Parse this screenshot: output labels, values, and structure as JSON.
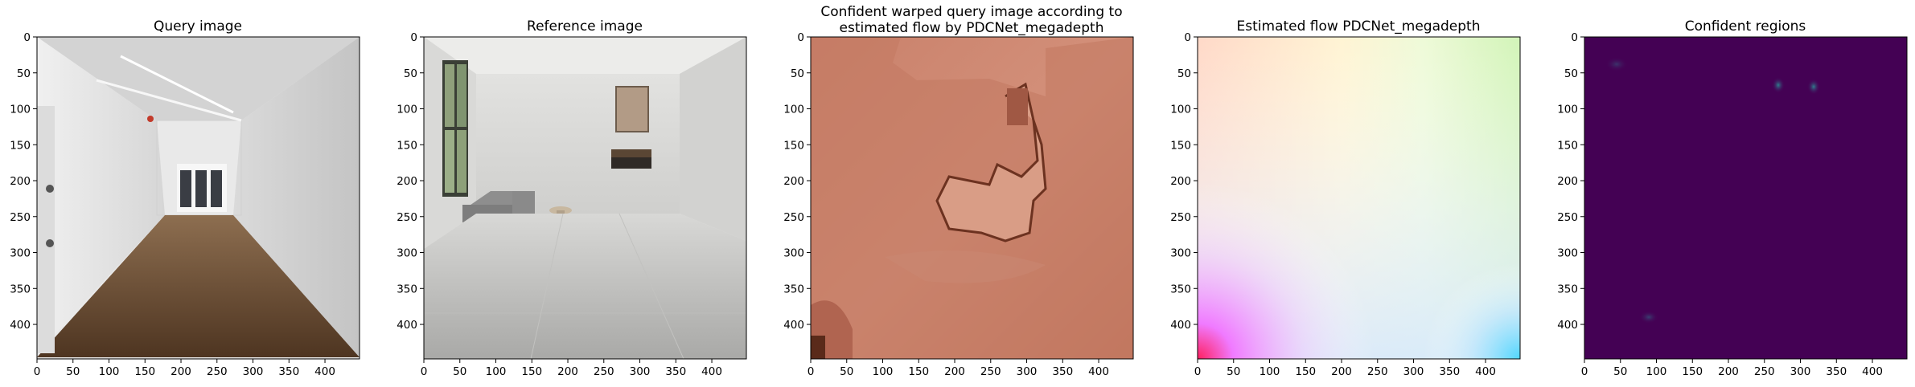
{
  "chart_data": [
    {
      "type": "image",
      "title": "Query image",
      "xlim": [
        0,
        448
      ],
      "ylim": [
        448,
        0
      ],
      "xticks": [
        0,
        50,
        100,
        150,
        200,
        250,
        300,
        350,
        400
      ],
      "yticks": [
        0,
        50,
        100,
        150,
        200,
        250,
        300,
        350,
        400
      ],
      "content": "photo: long white corridor with wooden floor and ceiling pipes"
    },
    {
      "type": "image",
      "title": "Reference image",
      "xlim": [
        0,
        448
      ],
      "ylim": [
        448,
        0
      ],
      "xticks": [
        0,
        50,
        100,
        150,
        200,
        250,
        300,
        350,
        400
      ],
      "yticks": [
        0,
        50,
        100,
        150,
        200,
        250,
        300,
        350,
        400
      ],
      "content": "photo: white room with grey sofa, window, framed art and terrazzo floor"
    },
    {
      "type": "image",
      "title_lines": [
        "Confident warped query image according to",
        "estimated flow by PDCNet_megadepth"
      ],
      "xlim": [
        0,
        448
      ],
      "ylim": [
        448,
        0
      ],
      "xticks": [
        0,
        50,
        100,
        150,
        200,
        250,
        300,
        350,
        400
      ],
      "yticks": [
        0,
        50,
        100,
        150,
        200,
        250,
        300,
        350,
        400
      ],
      "content": "reddish-brown overlay of warped query on reference"
    },
    {
      "type": "image",
      "title": "Estimated flow PDCNet_megadepth",
      "xlim": [
        0,
        448
      ],
      "ylim": [
        448,
        0
      ],
      "xticks": [
        0,
        50,
        100,
        150,
        200,
        250,
        300,
        350,
        400
      ],
      "yticks": [
        0,
        50,
        100,
        150,
        200,
        250,
        300,
        350,
        400
      ],
      "content": "optical flow color visualization"
    },
    {
      "type": "heatmap",
      "title": "Confident regions",
      "xlim": [
        0,
        448
      ],
      "ylim": [
        448,
        0
      ],
      "xticks": [
        0,
        50,
        100,
        150,
        200,
        250,
        300,
        350,
        400
      ],
      "yticks": [
        0,
        50,
        100,
        150,
        200,
        250,
        300,
        350,
        400
      ],
      "colors": {
        "background": "#440154",
        "highlight": "#3a6f8a"
      }
    }
  ]
}
